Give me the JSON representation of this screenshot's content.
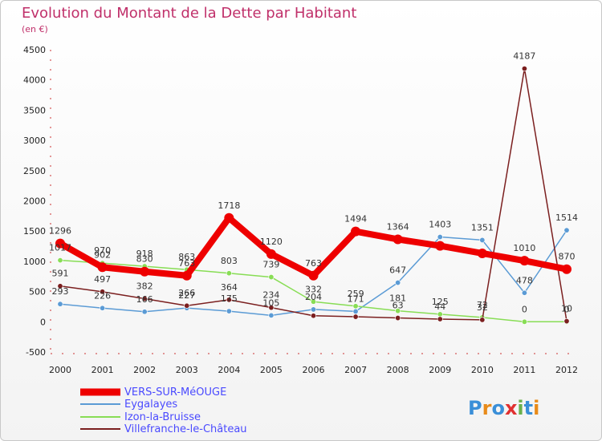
{
  "chart_data": {
    "type": "line",
    "title": "Evolution du Montant de la Dette par Habitant",
    "subtitle": "(en €)",
    "x": [
      "2000",
      "2001",
      "2002",
      "2003",
      "2004",
      "2005",
      "2006",
      "2007",
      "2008",
      "2009",
      "2010",
      "2011",
      "2012"
    ],
    "ylim": [
      -500,
      4500
    ],
    "yticks": [
      -500,
      0,
      500,
      1000,
      1500,
      2000,
      2500,
      3000,
      3500,
      4000,
      4500
    ],
    "grid": false,
    "legend_position": "bottom-left",
    "series": [
      {
        "name": "VERS-SUR-MéOUGE",
        "color": "#ee0000",
        "values": [
          1296,
          902,
          830,
          763,
          1718,
          1120,
          763,
          1494,
          1364,
          1256,
          1132,
          1010,
          870
        ],
        "labels": [
          "1296",
          "902",
          "830",
          "763",
          "1718",
          "1120",
          "763",
          "1494",
          "1364",
          "",
          "",
          "1010",
          "870"
        ]
      },
      {
        "name": "Eygalayes",
        "color": "#5b9bd5",
        "values": [
          293,
          226,
          166,
          227,
          175,
          105,
          204,
          171,
          647,
          1403,
          1351,
          478,
          1514
        ],
        "labels": [
          "293",
          "226",
          "166",
          "227",
          "175",
          "105",
          "204",
          "171",
          "647",
          "1403",
          "1351",
          "478",
          "1514"
        ]
      },
      {
        "name": "Izon-la-Bruisse",
        "color": "#88dd55",
        "values": [
          1017,
          970,
          918,
          863,
          803,
          739,
          332,
          259,
          181,
          125,
          72,
          0,
          0
        ],
        "labels": [
          "1017",
          "970",
          "918",
          "863",
          "803",
          "739",
          "332",
          "259",
          "181",
          "125",
          "72",
          "0",
          "0"
        ]
      },
      {
        "name": "Villefranche-le-Château",
        "color": "#7b1f1f",
        "values": [
          591,
          497,
          382,
          266,
          364,
          234,
          100,
          83,
          63,
          44,
          32,
          4187,
          10
        ],
        "labels": [
          "591",
          "497",
          "382",
          "266",
          "364",
          "234",
          "",
          "",
          "63",
          "44",
          "32",
          "4187",
          "10"
        ]
      }
    ]
  },
  "brand": {
    "logo": "Proxiti"
  }
}
